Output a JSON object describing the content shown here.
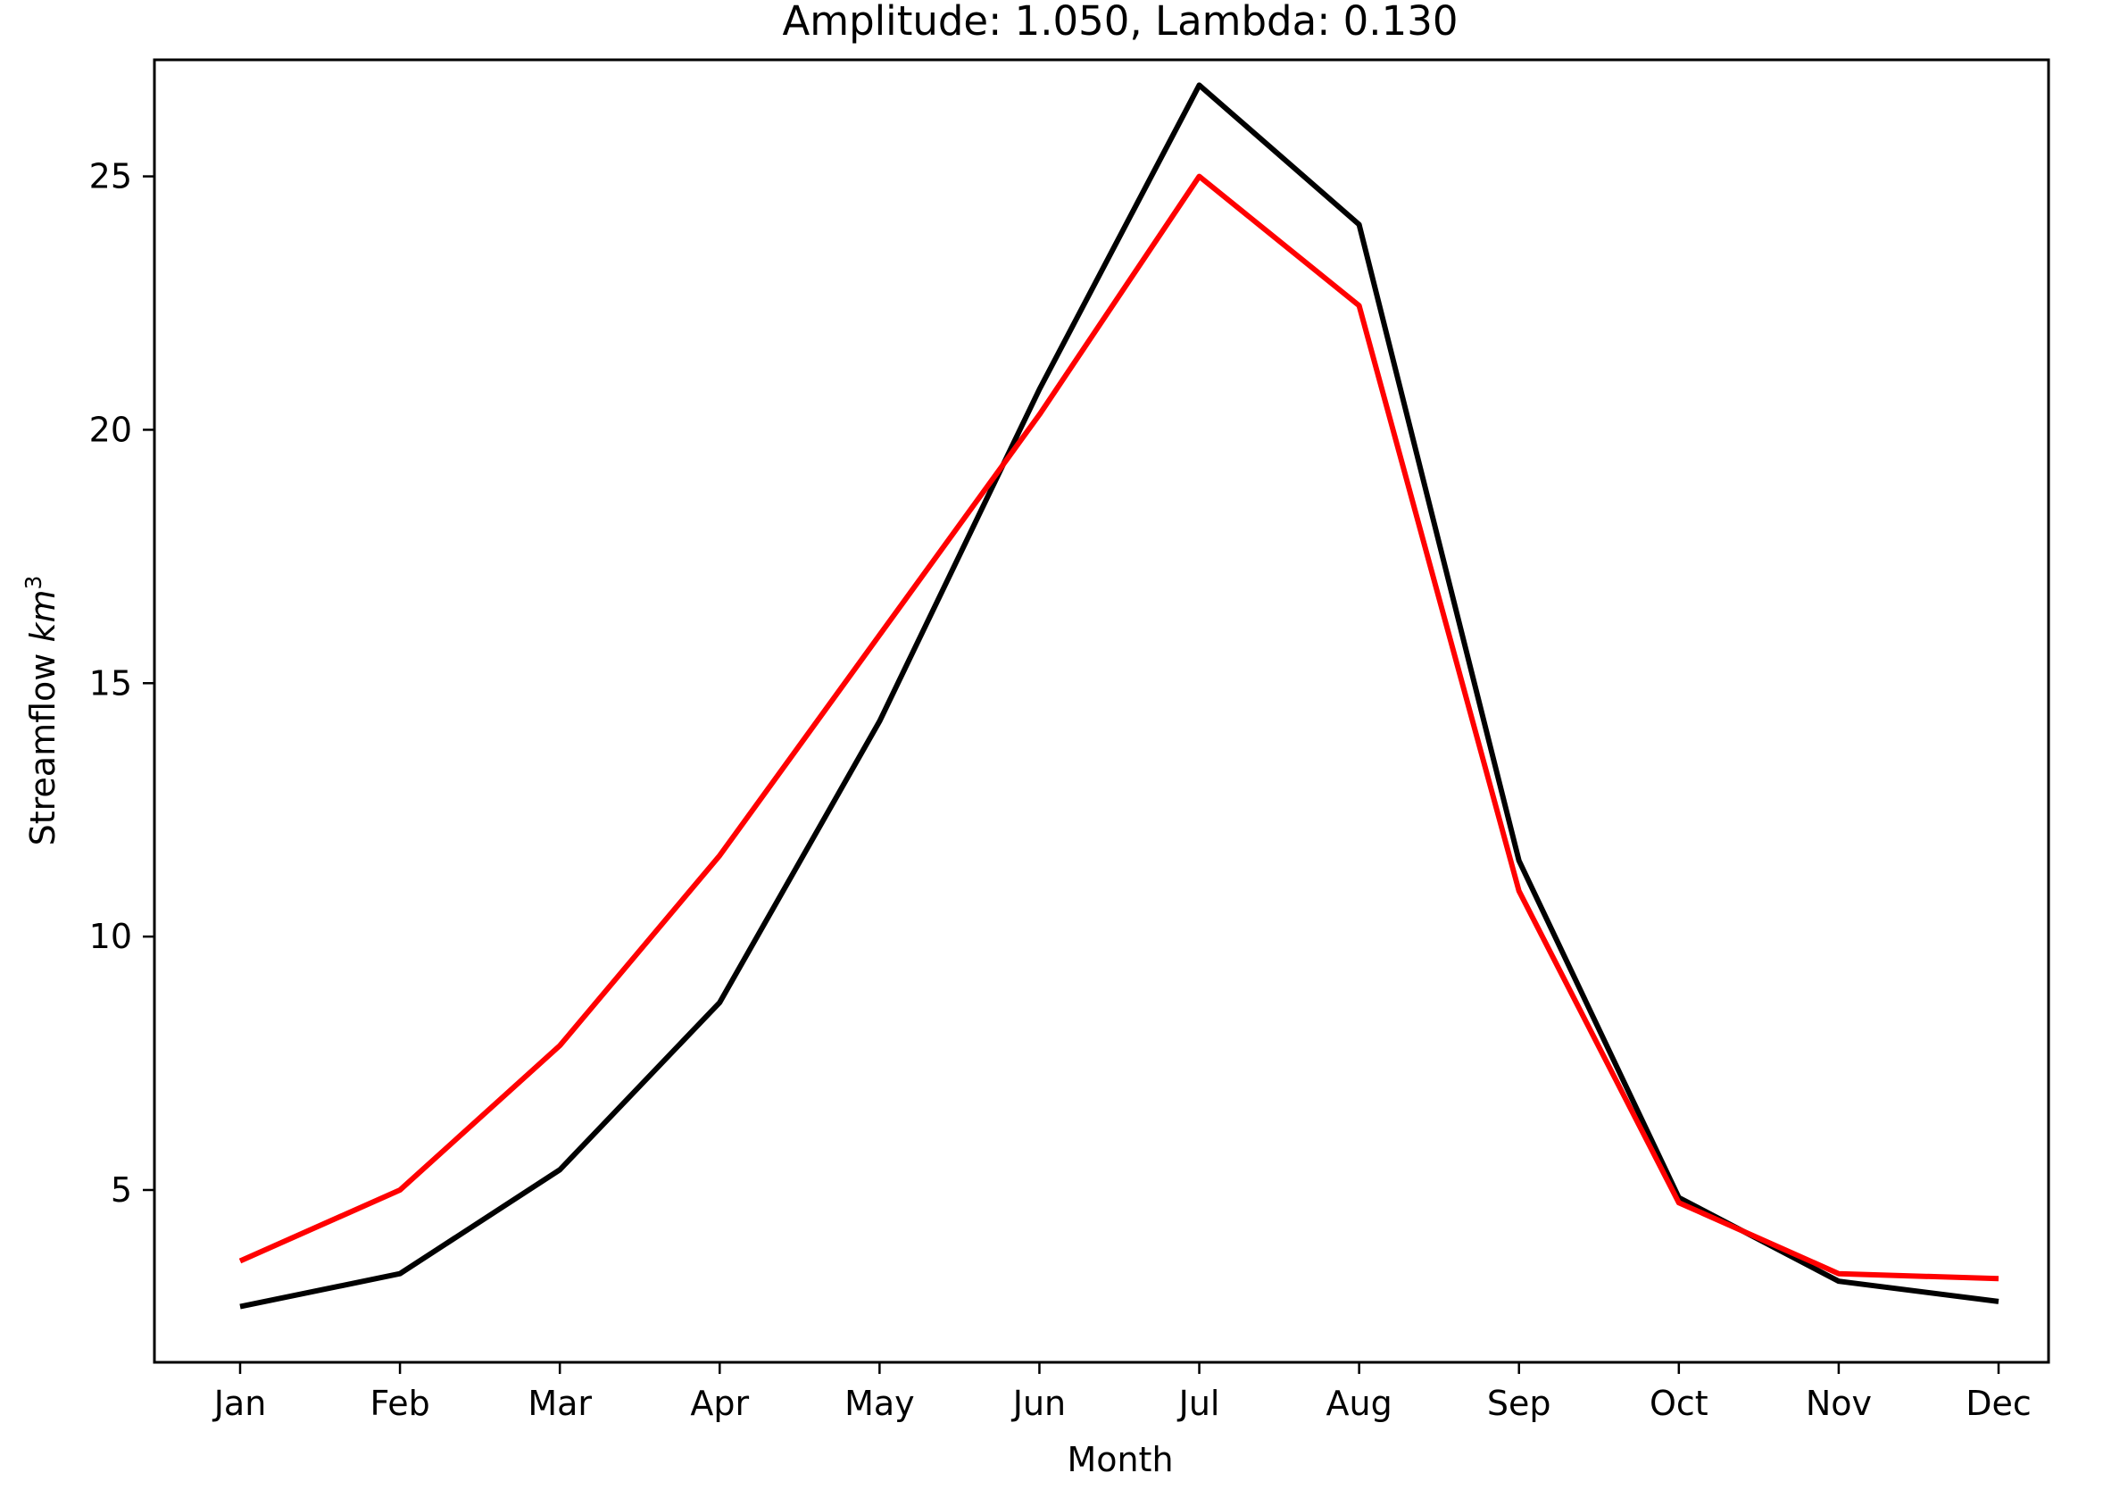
{
  "chart_data": {
    "type": "line",
    "title": "Amplitude: 1.050, Lambda: 0.130",
    "xlabel": "Month",
    "ylabel_main": "Streamflow ",
    "ylabel_unit": "km",
    "ylabel_superscript": "3",
    "categories": [
      "Jan",
      "Feb",
      "Mar",
      "Apr",
      "May",
      "Jun",
      "Jul",
      "Aug",
      "Sep",
      "Oct",
      "Nov",
      "Dec"
    ],
    "ylim": [
      1.6,
      27.3
    ],
    "yticks": [
      5,
      10,
      15,
      20,
      25
    ],
    "grid": false,
    "legend": "none",
    "series": [
      {
        "color": "#000000",
        "values": [
          2.7,
          3.35,
          5.4,
          8.7,
          14.25,
          20.8,
          26.8,
          24.05,
          11.5,
          4.85,
          3.2,
          2.8
        ]
      },
      {
        "color": "#ff0000",
        "values": [
          3.6,
          5.0,
          7.85,
          11.6,
          15.95,
          20.3,
          25.0,
          22.45,
          10.9,
          4.75,
          3.35,
          3.25
        ]
      }
    ]
  }
}
